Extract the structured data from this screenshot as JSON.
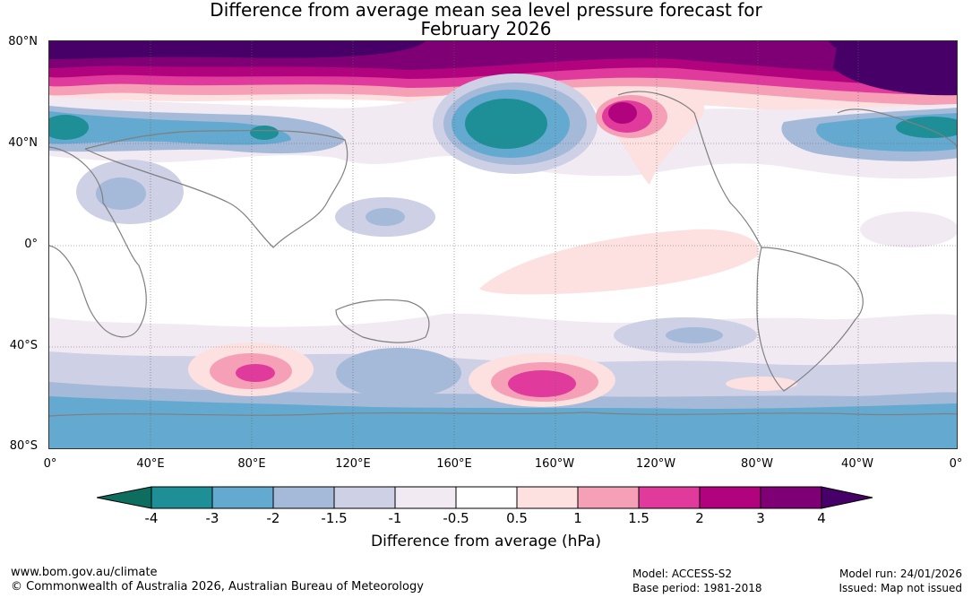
{
  "title": {
    "line1": "Difference from average mean sea level pressure forecast for",
    "line2": "February 2026"
  },
  "map": {
    "lat_labels": [
      "80°N",
      "40°N",
      "0°",
      "40°S",
      "80°S"
    ],
    "lon_labels": [
      "0°",
      "40°E",
      "80°E",
      "120°E",
      "160°E",
      "160°W",
      "120°W",
      "80°W",
      "40°W",
      "0°"
    ]
  },
  "colorbar": {
    "labels": [
      "-4",
      "-3",
      "-2",
      "-1.5",
      "-1",
      "-0.5",
      "0.5",
      "1",
      "1.5",
      "2",
      "3",
      "4"
    ],
    "colors": [
      "#0d6e5f",
      "#1e8f96",
      "#64a9cf",
      "#a5b9d8",
      "#ced0e6",
      "#f1eaf3",
      "#ffffff",
      "#fde0e0",
      "#f6a0b8",
      "#e03a9c",
      "#b2037e",
      "#7f0075",
      "#460068"
    ],
    "title": "Difference from average (hPa)"
  },
  "footer": {
    "website": "www.bom.gov.au/climate",
    "copyright": "© Commonwealth of Australia 2026, Australian Bureau of Meteorology",
    "model": "Model: ACCESS-S2",
    "base_period": "Base period: 1981-2018",
    "model_run": "Model run: 24/01/2026",
    "issued": "Issued: Map not issued"
  }
}
